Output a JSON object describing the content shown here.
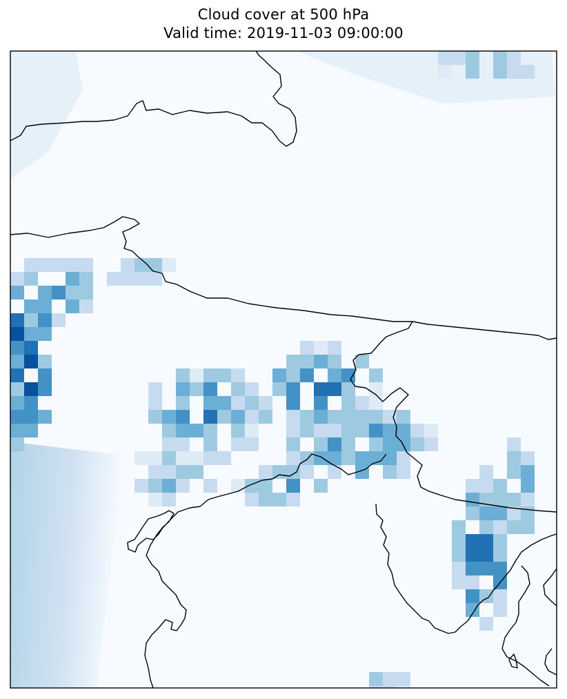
{
  "title": {
    "line1": "Cloud cover at 500 hPa",
    "line2": "Valid time: 2019-11-03 09:00:00"
  },
  "map": {
    "variable": "cloud cover",
    "level": "500 hPa",
    "colormap": [
      "#f7fbff",
      "#deebf7",
      "#c6dbef",
      "#9ecae1",
      "#6baed6",
      "#4292c6",
      "#2171b5",
      "#08519c",
      "#08306b"
    ],
    "coastline_color": "#000000",
    "frame_color": "#000000",
    "grid": false,
    "legend": false,
    "colorbar": false
  }
}
